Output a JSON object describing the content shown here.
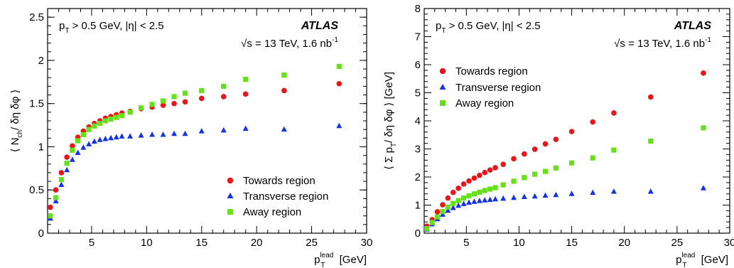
{
  "colors": {
    "towards": "#e8161b",
    "transverse": "#1432e6",
    "away": "#66e01a"
  },
  "panels": [
    {
      "id": "left",
      "atlas": "ATLAS",
      "cut_prefix": "p",
      "cut_sub": "T",
      "cut_suffix": " > 0.5 GeV, |η| < 2.5",
      "energy": "√s = 13 TeV, 1.6 nb",
      "energy_sup": "-1",
      "ylabel_open": "⟨ N",
      "ylabel_sub": "ch",
      "ylabel_close": "/ δη δφ ⟩",
      "xlabel_p": "p",
      "xlabel_sub": "T",
      "xlabel_sup": "lead",
      "xlabel_unit": " [GeV]",
      "legend_position": "bottom-right"
    },
    {
      "id": "right",
      "atlas": "ATLAS",
      "cut_prefix": "p",
      "cut_sub": "T",
      "cut_suffix": " > 0.5 GeV, |η| < 2.5",
      "energy": "√s = 13 TeV, 1.6 nb",
      "energy_sup": "-1",
      "ylabel_open": "⟨ Σ p",
      "ylabel_sub": "T",
      "ylabel_close": "/ δη δφ ⟩ [GeV]",
      "xlabel_p": "p",
      "xlabel_sub": "T",
      "xlabel_sup": "lead",
      "xlabel_unit": " [GeV]",
      "legend_position": "top-left"
    }
  ],
  "chart_data": [
    {
      "type": "scatter",
      "xlim": [
        1,
        30
      ],
      "ylim": [
        0,
        2.6
      ],
      "xticks": [
        5,
        10,
        15,
        20,
        25,
        30
      ],
      "yticks": [
        0,
        0.5,
        1,
        1.5,
        2,
        2.5
      ],
      "xticklabels": [
        "5",
        "10",
        "15",
        "20",
        "25",
        "30"
      ],
      "yticklabels": [
        "0",
        "0.5",
        "1",
        "1.5",
        "2",
        "2.5"
      ],
      "x": [
        1.25,
        1.75,
        2.25,
        2.75,
        3.25,
        3.75,
        4.25,
        4.75,
        5.25,
        5.75,
        6.25,
        6.75,
        7.25,
        7.75,
        8.5,
        9.5,
        10.5,
        11.5,
        12.5,
        13.5,
        15,
        17,
        19,
        22.5,
        27.5
      ],
      "series": [
        {
          "name": "Towards region",
          "marker": "circle",
          "color": "#e8161b",
          "values": [
            0.3,
            0.5,
            0.7,
            0.88,
            1.01,
            1.11,
            1.18,
            1.23,
            1.27,
            1.3,
            1.33,
            1.35,
            1.37,
            1.39,
            1.41,
            1.44,
            1.46,
            1.48,
            1.5,
            1.52,
            1.56,
            1.58,
            1.61,
            1.65,
            1.73
          ]
        },
        {
          "name": "Transverse region",
          "marker": "triangle",
          "color": "#1432e6",
          "values": [
            0.17,
            0.37,
            0.56,
            0.73,
            0.85,
            0.93,
            0.99,
            1.03,
            1.06,
            1.08,
            1.09,
            1.1,
            1.11,
            1.12,
            1.12,
            1.13,
            1.14,
            1.14,
            1.15,
            1.15,
            1.18,
            1.19,
            1.21,
            1.2,
            1.24
          ]
        },
        {
          "name": "Away region",
          "marker": "square",
          "color": "#66e01a",
          "values": [
            0.2,
            0.41,
            0.62,
            0.81,
            0.96,
            1.07,
            1.14,
            1.2,
            1.24,
            1.27,
            1.3,
            1.32,
            1.34,
            1.36,
            1.4,
            1.45,
            1.49,
            1.53,
            1.58,
            1.62,
            1.65,
            1.7,
            1.78,
            1.83,
            1.93
          ]
        }
      ]
    },
    {
      "type": "scatter",
      "xlim": [
        1,
        30
      ],
      "ylim": [
        0,
        8
      ],
      "xticks": [
        5,
        10,
        15,
        20,
        25,
        30
      ],
      "yticks": [
        0,
        1,
        2,
        3,
        4,
        5,
        6,
        7,
        8
      ],
      "xticklabels": [
        "5",
        "10",
        "15",
        "20",
        "25",
        "30"
      ],
      "yticklabels": [
        "0",
        "1",
        "2",
        "3",
        "4",
        "5",
        "6",
        "7",
        "8"
      ],
      "x": [
        1.25,
        1.75,
        2.25,
        2.75,
        3.25,
        3.75,
        4.25,
        4.75,
        5.25,
        5.75,
        6.25,
        6.75,
        7.25,
        7.75,
        8.5,
        9.5,
        10.5,
        11.5,
        12.5,
        13.5,
        15,
        17,
        19,
        22.5,
        27.5
      ],
      "series": [
        {
          "name": "Towards region",
          "marker": "circle",
          "color": "#e8161b",
          "values": [
            0.25,
            0.48,
            0.76,
            1.01,
            1.25,
            1.45,
            1.6,
            1.75,
            1.86,
            1.96,
            2.06,
            2.16,
            2.25,
            2.33,
            2.45,
            2.65,
            2.82,
            2.99,
            3.18,
            3.34,
            3.62,
            3.96,
            4.28,
            4.85,
            5.7
          ]
        },
        {
          "name": "Transverse region",
          "marker": "triangle",
          "color": "#1432e6",
          "values": [
            0.13,
            0.32,
            0.5,
            0.66,
            0.8,
            0.9,
            0.98,
            1.04,
            1.09,
            1.12,
            1.15,
            1.17,
            1.19,
            1.21,
            1.23,
            1.26,
            1.29,
            1.31,
            1.34,
            1.36,
            1.4,
            1.44,
            1.48,
            1.48,
            1.6
          ]
        },
        {
          "name": "Away region",
          "marker": "square",
          "color": "#66e01a",
          "values": [
            0.16,
            0.38,
            0.58,
            0.77,
            0.93,
            1.06,
            1.16,
            1.25,
            1.33,
            1.4,
            1.46,
            1.52,
            1.57,
            1.62,
            1.72,
            1.85,
            1.98,
            2.1,
            2.2,
            2.32,
            2.5,
            2.68,
            2.96,
            3.28,
            3.75
          ]
        }
      ]
    }
  ]
}
